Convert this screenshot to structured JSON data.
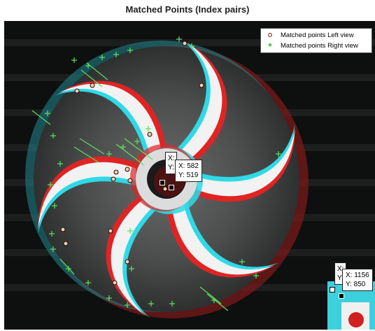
{
  "figure": {
    "title": "Matched Points (Index pairs)"
  },
  "legend": {
    "items": [
      {
        "symbol": "o",
        "label": "Matched points Left view",
        "color": "#7a1010"
      },
      {
        "symbol": "+",
        "label": "Matched points Right view",
        "color": "#1db31d"
      }
    ]
  },
  "datatips": [
    {
      "x_label": "X: 582",
      "y_label": "Y: 519",
      "back_x": "X:",
      "back_y": "Y:"
    },
    {
      "x_label": "X: 1156",
      "y_label": "Y: 850",
      "back_x": "X:",
      "back_y": "Y:"
    }
  ],
  "colors": {
    "left_view": "#e02020",
    "right_view": "#27d6e6",
    "background": "#0e0f0f"
  }
}
